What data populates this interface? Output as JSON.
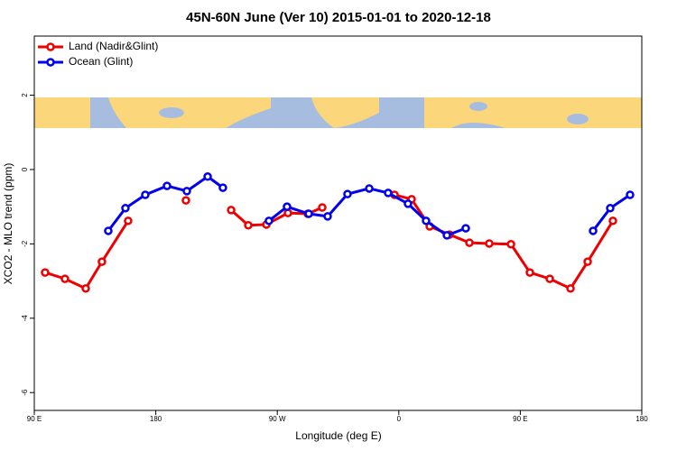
{
  "chart_data": {
    "type": "line",
    "title": "45N-60N June (Ver 10)   2015-01-01 to 2020-12-18",
    "x_label": "Longitude (deg E)",
    "y_label": "XCO2 - MLO trend (ppm)",
    "xlim": [
      90,
      540
    ],
    "xticks": [
      {
        "value": 90,
        "label": "90 E"
      },
      {
        "value": 180,
        "label": "180"
      },
      {
        "value": 270,
        "label": "90 W"
      },
      {
        "value": 360,
        "label": "0"
      },
      {
        "value": 450,
        "label": "90 E"
      },
      {
        "value": 540,
        "label": "180"
      }
    ],
    "ylim": [
      -6.48,
      3.59
    ],
    "yticks": [
      -6,
      -4,
      -2,
      0,
      2
    ],
    "legend": "top-left",
    "series": [
      {
        "name": "Land (Nadir&Glint)",
        "color": "#ee0000",
        "x": [
          98.0,
          112.7,
          128.1,
          140.1,
          159.5,
          null,
          202.3,
          null,
          235.8,
          248.5,
          261.9,
          277.9,
          292.6,
          303.3,
          null,
          356.8,
          369.5,
          382.9,
          397.6,
          412.3,
          427.0,
          443.1,
          457.1,
          471.8,
          487.2,
          499.9,
          518.6
        ],
        "values": [
          -2.77,
          -2.94,
          -3.2,
          -2.48,
          -1.38,
          null,
          -0.83,
          null,
          -1.09,
          -1.5,
          -1.48,
          -1.17,
          -1.19,
          -1.02,
          null,
          -0.68,
          -0.8,
          -1.53,
          -1.75,
          -1.97,
          -1.99,
          -2.01,
          -2.77,
          -2.94,
          -3.2,
          -2.48,
          -1.38
        ]
      },
      {
        "name": "Ocean (Glint)",
        "color": "#0000ee",
        "x": [
          144.8,
          157.5,
          172.2,
          188.3,
          203.0,
          218.4,
          229.7,
          null,
          263.8,
          277.2,
          293.3,
          307.3,
          322.0,
          338.1,
          352.1,
          366.8,
          380.2,
          395.6,
          409.6,
          null,
          503.9,
          516.6,
          531.3
        ],
        "values": [
          -1.65,
          -1.04,
          -0.68,
          -0.44,
          -0.58,
          -0.19,
          -0.49,
          null,
          -1.38,
          -1.0,
          -1.19,
          -1.26,
          -0.66,
          -0.51,
          -0.63,
          -0.92,
          -1.38,
          -1.77,
          -1.58,
          null,
          -1.65,
          -1.04,
          -0.68
        ]
      }
    ]
  }
}
